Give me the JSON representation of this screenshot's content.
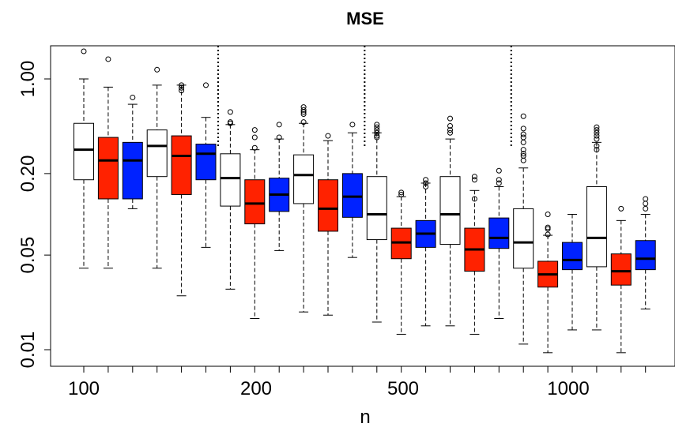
{
  "chart_data": {
    "type": "boxplot",
    "title": "MSE",
    "xlabel": "n",
    "ylabel": "",
    "y_scale": "log",
    "ylim": [
      0.0075,
      3.0
    ],
    "y_ticks": [
      {
        "value": 0.01,
        "label": "0.01"
      },
      {
        "value": 0.05,
        "label": "0.05"
      },
      {
        "value": 0.2,
        "label": "0.20"
      },
      {
        "value": 1.0,
        "label": "1.00"
      }
    ],
    "x_ticks": [
      {
        "position": 2,
        "label": "100"
      },
      {
        "position": 8,
        "label": "200"
      },
      {
        "position": 14,
        "label": "500"
      },
      {
        "position": 20,
        "label": "1000"
      }
    ],
    "box_count": 24,
    "group_separators_after_box": [
      6,
      12,
      18
    ],
    "grid": false,
    "legend": "none",
    "colors": {
      "white": "#ffffff",
      "red": "#ff2200",
      "blue": "#0022ff",
      "stroke": "#000000"
    },
    "groups": [
      "100",
      "200",
      "500",
      "1000"
    ],
    "boxes": [
      {
        "group": "100",
        "color": "white",
        "whisker_low": 0.04,
        "q1": 0.18,
        "median": 0.3,
        "q3": 0.47,
        "whisker_high": 1.0,
        "outliers": [
          1.6
        ]
      },
      {
        "group": "100",
        "color": "red",
        "whisker_low": 0.04,
        "q1": 0.13,
        "median": 0.25,
        "q3": 0.37,
        "whisker_high": 0.87,
        "outliers": [
          1.4
        ]
      },
      {
        "group": "100",
        "color": "blue",
        "whisker_low": 0.11,
        "q1": 0.13,
        "median": 0.25,
        "q3": 0.34,
        "whisker_high": 0.65,
        "outliers": [
          0.73
        ]
      },
      {
        "group": "100",
        "color": "white",
        "whisker_low": 0.04,
        "q1": 0.19,
        "median": 0.32,
        "q3": 0.42,
        "whisker_high": 0.9,
        "outliers": [
          1.17
        ]
      },
      {
        "group": "100",
        "color": "red",
        "whisker_low": 0.025,
        "q1": 0.14,
        "median": 0.27,
        "q3": 0.38,
        "whisker_high": 0.9,
        "outliers": [
          0.82,
          0.86,
          0.9
        ]
      },
      {
        "group": "100",
        "color": "blue",
        "whisker_low": 0.057,
        "q1": 0.18,
        "median": 0.28,
        "q3": 0.33,
        "whisker_high": 0.52,
        "outliers": [
          0.9
        ]
      },
      {
        "group": "200",
        "color": "white",
        "whisker_low": 0.028,
        "q1": 0.115,
        "median": 0.185,
        "q3": 0.28,
        "whisker_high": 0.46,
        "outliers": [
          0.47,
          0.48,
          0.57
        ]
      },
      {
        "group": "200",
        "color": "red",
        "whisker_low": 0.017,
        "q1": 0.085,
        "median": 0.12,
        "q3": 0.18,
        "whisker_high": 0.3,
        "outliers": [
          0.31,
          0.37,
          0.42
        ]
      },
      {
        "group": "200",
        "color": "blue",
        "whisker_low": 0.054,
        "q1": 0.105,
        "median": 0.14,
        "q3": 0.185,
        "whisker_high": 0.36,
        "outliers": [
          0.37,
          0.46
        ]
      },
      {
        "group": "200",
        "color": "white",
        "whisker_low": 0.019,
        "q1": 0.12,
        "median": 0.195,
        "q3": 0.275,
        "whisker_high": 0.47,
        "outliers": [
          0.48,
          0.55,
          0.57,
          0.59,
          0.62
        ]
      },
      {
        "group": "200",
        "color": "red",
        "whisker_low": 0.018,
        "q1": 0.075,
        "median": 0.11,
        "q3": 0.18,
        "whisker_high": 0.35,
        "outliers": [
          0.38
        ]
      },
      {
        "group": "200",
        "color": "blue",
        "whisker_low": 0.048,
        "q1": 0.095,
        "median": 0.135,
        "q3": 0.2,
        "whisker_high": 0.4,
        "outliers": [
          0.46
        ]
      },
      {
        "group": "500",
        "color": "white",
        "whisker_low": 0.016,
        "q1": 0.065,
        "median": 0.1,
        "q3": 0.19,
        "whisker_high": 0.4,
        "outliers": [
          0.37,
          0.38,
          0.4,
          0.42,
          0.44,
          0.46
        ]
      },
      {
        "group": "500",
        "color": "red",
        "whisker_low": 0.013,
        "q1": 0.047,
        "median": 0.062,
        "q3": 0.079,
        "whisker_high": 0.135,
        "outliers": [
          0.14,
          0.145
        ]
      },
      {
        "group": "500",
        "color": "blue",
        "whisker_low": 0.015,
        "q1": 0.057,
        "median": 0.072,
        "q3": 0.09,
        "whisker_high": 0.17,
        "outliers": [
          0.16,
          0.17,
          0.18
        ]
      },
      {
        "group": "500",
        "color": "white",
        "whisker_low": 0.015,
        "q1": 0.06,
        "median": 0.1,
        "q3": 0.19,
        "whisker_high": 0.36,
        "outliers": [
          0.4,
          0.42,
          0.45,
          0.51
        ]
      },
      {
        "group": "500",
        "color": "red",
        "whisker_low": 0.013,
        "q1": 0.038,
        "median": 0.055,
        "q3": 0.079,
        "whisker_high": 0.15,
        "outliers": [
          0.13,
          0.18,
          0.19
        ]
      },
      {
        "group": "500",
        "color": "blue",
        "whisker_low": 0.017,
        "q1": 0.056,
        "median": 0.067,
        "q3": 0.094,
        "whisker_high": 0.16,
        "outliers": [
          0.17,
          0.18,
          0.21
        ]
      },
      {
        "group": "1000",
        "color": "white",
        "whisker_low": 0.011,
        "q1": 0.04,
        "median": 0.062,
        "q3": 0.11,
        "whisker_high": 0.22,
        "outliers": [
          0.25,
          0.27,
          0.28,
          0.3,
          0.34,
          0.37,
          0.39,
          0.43,
          0.53
        ]
      },
      {
        "group": "1000",
        "color": "red",
        "whisker_low": 0.0095,
        "q1": 0.029,
        "median": 0.036,
        "q3": 0.045,
        "whisker_high": 0.07,
        "outliers": [
          0.071,
          0.078,
          0.08,
          0.1
        ]
      },
      {
        "group": "1000",
        "color": "blue",
        "whisker_low": 0.014,
        "q1": 0.039,
        "median": 0.046,
        "q3": 0.062,
        "whisker_high": 0.1,
        "outliers": []
      },
      {
        "group": "1000",
        "color": "white",
        "whisker_low": 0.014,
        "q1": 0.041,
        "median": 0.067,
        "q3": 0.16,
        "whisker_high": 0.34,
        "outliers": [
          0.3,
          0.32,
          0.36,
          0.38,
          0.4,
          0.42,
          0.44
        ]
      },
      {
        "group": "1000",
        "color": "red",
        "whisker_low": 0.0095,
        "q1": 0.03,
        "median": 0.038,
        "q3": 0.051,
        "whisker_high": 0.09,
        "outliers": [
          0.11
        ]
      },
      {
        "group": "1000",
        "color": "blue",
        "whisker_low": 0.02,
        "q1": 0.039,
        "median": 0.047,
        "q3": 0.064,
        "whisker_high": 0.1,
        "outliers": [
          0.11,
          0.12,
          0.13
        ]
      }
    ]
  }
}
